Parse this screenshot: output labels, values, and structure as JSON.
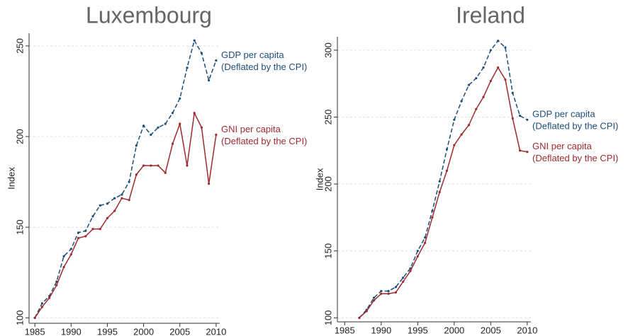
{
  "chart_data": [
    {
      "type": "line",
      "title": "Luxembourg",
      "ylabel": "Index",
      "x": [
        1985,
        1986,
        1987,
        1988,
        1989,
        1990,
        1991,
        1992,
        1993,
        1994,
        1995,
        1996,
        1997,
        1998,
        1999,
        2000,
        2001,
        2002,
        2003,
        2004,
        2005,
        2006,
        2007,
        2008,
        2009,
        2010
      ],
      "series": [
        {
          "name": "GDP per capita",
          "note": "(Deflated by the CPI)",
          "color": "#1f4e79",
          "dash": true,
          "values": [
            100,
            108,
            112,
            120,
            134,
            138,
            147,
            148,
            156,
            162,
            163,
            166,
            168,
            175,
            195,
            206,
            201,
            205,
            207,
            213,
            221,
            238,
            253,
            246,
            231,
            242
          ]
        },
        {
          "name": "GNI per capita",
          "note": "(Deflated by the CPI)",
          "color": "#9e2a2f",
          "dash": false,
          "values": [
            100,
            106,
            111,
            118,
            128,
            135,
            144,
            145,
            149,
            149,
            155,
            159,
            166,
            165,
            179,
            184,
            184,
            184,
            180,
            196,
            207,
            184,
            213,
            205,
            174,
            201
          ]
        }
      ],
      "xlim": [
        1984.2,
        2010.5
      ],
      "xticks": [
        1985,
        1990,
        1995,
        2000,
        2005,
        2010
      ],
      "ylim": [
        97,
        257
      ],
      "yticks": [
        100,
        150,
        200,
        250
      ],
      "grid": true
    },
    {
      "type": "line",
      "title": "Ireland",
      "ylabel": "Index",
      "x": [
        1987,
        1988,
        1989,
        1990,
        1991,
        1992,
        1993,
        1994,
        1995,
        1996,
        1997,
        1998,
        1999,
        2000,
        2001,
        2002,
        2003,
        2004,
        2005,
        2006,
        2007,
        2008,
        2009,
        2010
      ],
      "series": [
        {
          "name": "GDP per capita",
          "note": "(Deflated by the CPI)",
          "color": "#1f4e79",
          "dash": true,
          "values": [
            100,
            106,
            115,
            120,
            120,
            123,
            130,
            137,
            150,
            160,
            180,
            202,
            226,
            248,
            262,
            274,
            279,
            287,
            300,
            307,
            302,
            268,
            251,
            248
          ]
        },
        {
          "name": "GNI per capita",
          "note": "(Deflated by the CPI)",
          "color": "#9e2a2f",
          "dash": false,
          "values": [
            100,
            105,
            113,
            118,
            118,
            119,
            127,
            135,
            146,
            156,
            175,
            194,
            210,
            229,
            237,
            244,
            256,
            265,
            277,
            287,
            278,
            249,
            225,
            224
          ]
        }
      ],
      "xlim": [
        1984,
        2010.5
      ],
      "xticks": [
        1985,
        1990,
        1995,
        2000,
        2005,
        2010
      ],
      "ylim": [
        97,
        310
      ],
      "yticks": [
        100,
        150,
        200,
        250,
        300
      ],
      "grid": true
    }
  ]
}
